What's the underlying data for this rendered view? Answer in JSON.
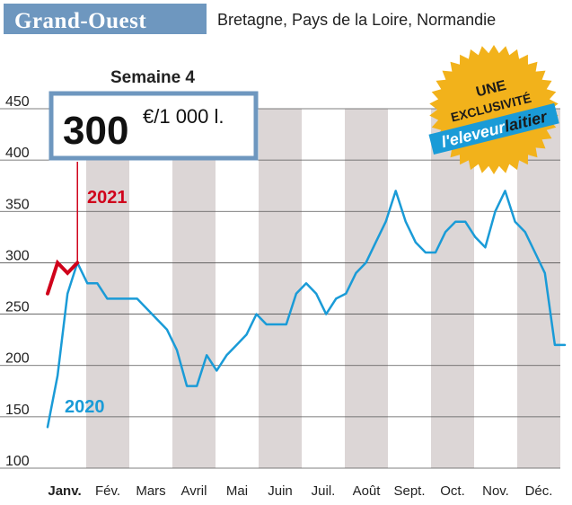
{
  "header": {
    "title": "Grand-Ouest",
    "subtitle": "Bretagne, Pays de la Loire, Normandie"
  },
  "callout": {
    "week_label": "Semaine 4",
    "value": "300",
    "unit": "€/1 000 l."
  },
  "badge": {
    "line1": "UNE",
    "line2": "EXCLUSIVITÉ",
    "brand_part1": "l'eleveur",
    "brand_part2": "laitier"
  },
  "colors": {
    "series_2020": "#1a9bd7",
    "series_2021": "#d0021b",
    "stripe": "#dcd6d6",
    "badge_gold": "#f2b21b",
    "callout_border": "#6e97bf",
    "header_bg": "#6e97bf"
  },
  "chart_data": {
    "type": "line",
    "title": "Semaine 4",
    "xlabel": "",
    "ylabel": "€/1 000 l.",
    "ylim": [
      100,
      450
    ],
    "yticks": [
      100,
      150,
      200,
      250,
      300,
      350,
      400,
      450
    ],
    "months": [
      "Janv.",
      "Fév.",
      "Mars",
      "Avril",
      "Mai",
      "Juin",
      "Juil.",
      "Août",
      "Sept.",
      "Oct.",
      "Nov.",
      "Déc."
    ],
    "weeks_per_year": 52,
    "series": [
      {
        "name": "2020",
        "values": [
          140,
          190,
          270,
          300,
          280,
          280,
          265,
          265,
          265,
          265,
          255,
          245,
          235,
          215,
          180,
          180,
          210,
          195,
          210,
          220,
          230,
          250,
          240,
          240,
          240,
          270,
          280,
          270,
          250,
          265,
          270,
          290,
          300,
          320,
          340,
          370,
          340,
          320,
          310,
          310,
          330,
          340,
          340,
          325,
          315,
          350,
          370,
          340,
          330,
          310,
          290,
          220,
          220
        ]
      },
      {
        "name": "2021",
        "values": [
          270,
          300,
          290,
          300
        ]
      }
    ]
  }
}
